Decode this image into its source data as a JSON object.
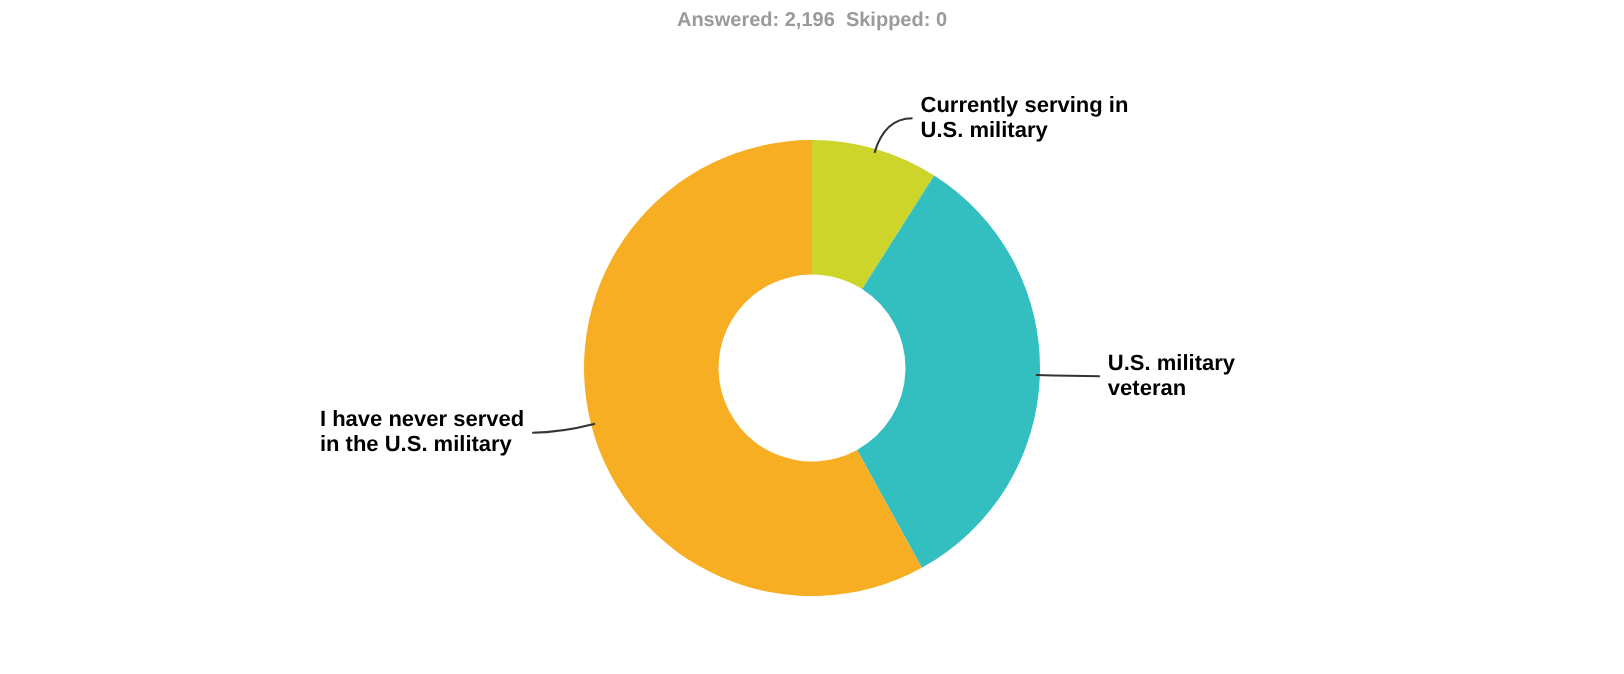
{
  "chart_data": {
    "type": "donut",
    "title": "Answered: 2,196  Skipped: 0",
    "categories": [
      "Currently serving in U.S. military",
      "U.S. military veteran",
      "I have never served in the U.S. military"
    ],
    "values": [
      9,
      33,
      58
    ],
    "colors": [
      "#cdd42a",
      "#33bec0",
      "#f7ae22"
    ],
    "legend": false
  }
}
